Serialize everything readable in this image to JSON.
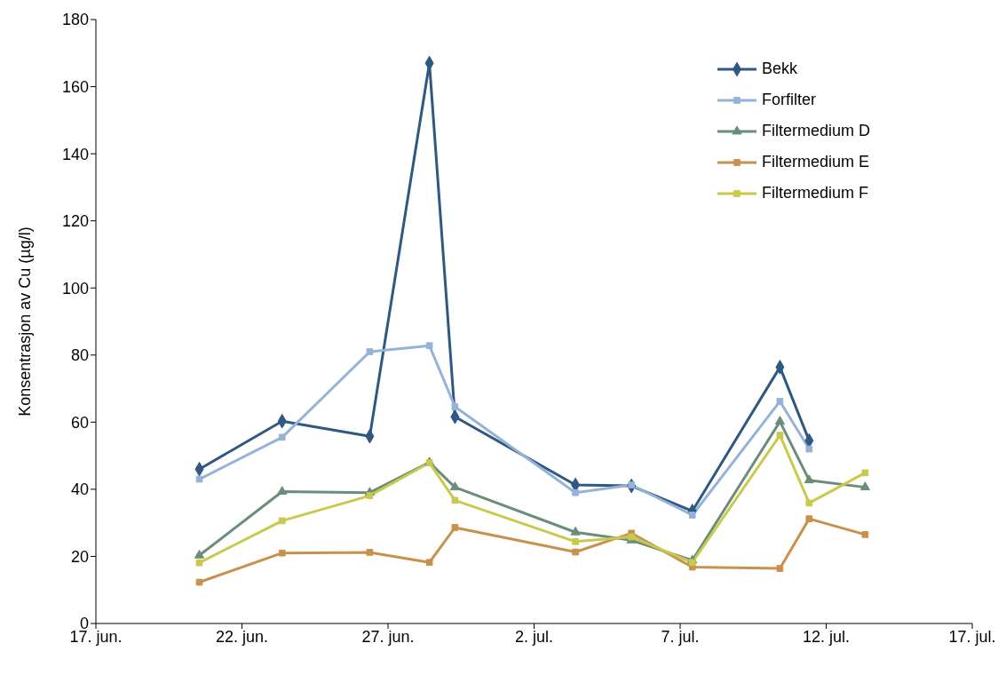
{
  "chart_data": {
    "type": "line",
    "ylabel": "Konsentrasjon av Cu (µg/l)",
    "x": [
      "--06-20T13:00",
      "--06-23T09:00",
      "--06-26T09:00",
      "--06-28T10:00",
      "--06-29T07:00",
      "--07-03T10:00",
      "--07-05T08:00",
      "--07-07T10:00",
      "--07-10T10:00",
      "--07-11T10:00",
      "--07-13T08:00"
    ],
    "series": [
      {
        "name": "Bekk",
        "color": "#2f5883",
        "marker": "diamond",
        "values": [
          46,
          60.3,
          55.8,
          167,
          61.6,
          41.3,
          41,
          33.5,
          76.4,
          54.5,
          null
        ]
      },
      {
        "name": "Forfilter",
        "color": "#95b3d7",
        "marker": "square",
        "values": [
          43,
          55.5,
          81,
          82.8,
          64.6,
          39,
          41.3,
          32.3,
          66.2,
          52,
          null
        ]
      },
      {
        "name": "Filtermedium D",
        "color": "#6b8e7b",
        "marker": "triangle",
        "values": [
          20.3,
          39.3,
          39,
          48,
          40.6,
          27.2,
          24.8,
          18.8,
          60.2,
          42.7,
          40.6
        ]
      },
      {
        "name": "Filtermedium E",
        "color": "#c8924e",
        "marker": "square",
        "values": [
          12.3,
          21,
          21.2,
          18.2,
          28.6,
          21.3,
          26.9,
          16.8,
          16.4,
          31.2,
          26.5
        ]
      },
      {
        "name": "Filtermedium F",
        "color": "#c9c94b",
        "marker": "square",
        "values": [
          18.1,
          30.6,
          38.1,
          47.9,
          36.7,
          24.4,
          25.8,
          18.2,
          56.1,
          35.9,
          44.9
        ]
      }
    ],
    "xlim": [
      "--06-17",
      "--07-17"
    ],
    "xticks": [
      {
        "value": "--06-17",
        "label": "17. jun."
      },
      {
        "value": "--06-22",
        "label": "22. jun."
      },
      {
        "value": "--06-27",
        "label": "27. jun."
      },
      {
        "value": "--07-02",
        "label": "2. jul."
      },
      {
        "value": "--07-07",
        "label": "7. jul."
      },
      {
        "value": "--07-12",
        "label": "12. jul."
      },
      {
        "value": "--07-17",
        "label": "17. jul."
      }
    ],
    "ylim": [
      0,
      180
    ],
    "yticks": [
      0,
      20,
      40,
      60,
      80,
      100,
      120,
      140,
      160,
      180
    ],
    "grid": false,
    "legend": "top right",
    "line_style": "solid"
  }
}
